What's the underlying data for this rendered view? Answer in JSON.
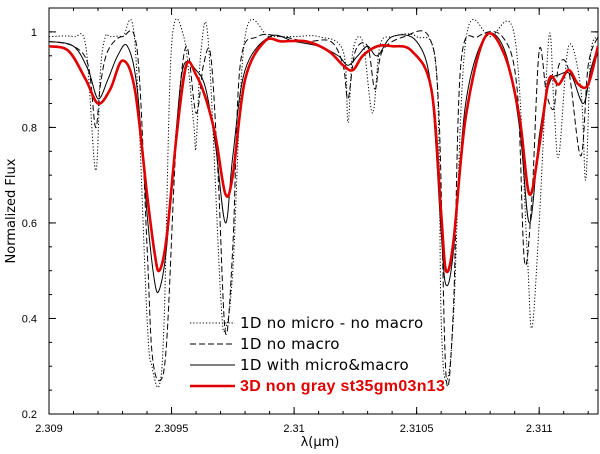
{
  "chart_data": {
    "type": "line",
    "title": "",
    "xlabel": "λ(μm)",
    "ylabel": "Normalized Flux",
    "xlim": [
      2.309,
      2.31124
    ],
    "ylim": [
      0.2,
      1.05
    ],
    "x_ticks": [
      2.309,
      2.3095,
      2.31,
      2.3105,
      2.311
    ],
    "x_tick_labels": [
      "2.309",
      "2.3095",
      "2.31",
      "2.3105",
      "2.311"
    ],
    "y_ticks": [
      0.2,
      0.4,
      0.6,
      0.8,
      1.0
    ],
    "y_tick_labels": [
      "0.2",
      "0.4",
      "0.6",
      "0.8",
      "1"
    ],
    "grid": false,
    "legend_position": "bottom-center",
    "series": [
      {
        "name": "1D no micro - no macro",
        "style": "dotted",
        "color": "#000000",
        "x": [
          2.309,
          2.3091,
          2.30915,
          2.30919,
          2.30921,
          2.30923,
          2.30925,
          2.3093,
          2.30935,
          2.3094,
          2.30942,
          2.30945,
          2.30947,
          2.3095,
          2.30955,
          2.30959,
          2.3096,
          2.30962,
          2.30965,
          2.3097,
          2.30972,
          2.30975,
          2.3098,
          2.3099,
          2.31,
          2.3101,
          2.3102,
          2.31022,
          2.31024,
          2.31028,
          2.31032,
          2.31035,
          2.3104,
          2.3105,
          2.31058,
          2.3106,
          2.31062,
          2.31065,
          2.3107,
          2.3108,
          2.3109,
          2.31095,
          2.31097,
          2.311,
          2.31104,
          2.31106,
          2.31108,
          2.31112,
          2.31117,
          2.31119,
          2.31121,
          2.31124
        ],
        "y": [
          0.99,
          0.99,
          0.97,
          0.71,
          0.92,
          0.99,
          0.99,
          0.99,
          0.98,
          0.4,
          0.3,
          0.26,
          0.4,
          0.97,
          0.99,
          0.81,
          0.76,
          0.96,
          0.98,
          0.45,
          0.38,
          0.5,
          0.99,
          0.99,
          0.99,
          0.99,
          0.96,
          0.81,
          0.96,
          0.98,
          0.83,
          0.97,
          0.99,
          0.99,
          0.92,
          0.4,
          0.27,
          0.4,
          0.98,
          0.99,
          0.99,
          0.55,
          0.38,
          0.6,
          0.99,
          0.85,
          0.74,
          0.97,
          0.88,
          0.69,
          0.95,
          0.99
        ]
      },
      {
        "name": "1D no macro",
        "style": "dashed",
        "color": "#000000",
        "x": [
          2.309,
          2.3091,
          2.30916,
          2.30919,
          2.30921,
          2.30924,
          2.3093,
          2.30936,
          2.3094,
          2.30942,
          2.30945,
          2.30948,
          2.30952,
          2.30956,
          2.3096,
          2.30963,
          2.30966,
          2.30969,
          2.30972,
          2.30975,
          2.30978,
          2.30985,
          2.30995,
          2.31005,
          2.31015,
          2.3102,
          2.31022,
          2.31025,
          2.3103,
          2.31033,
          2.31036,
          2.31045,
          2.31055,
          2.31059,
          2.31062,
          2.31065,
          2.31068,
          2.31075,
          2.31085,
          2.31091,
          2.31094,
          2.31097,
          2.311,
          2.31103,
          2.31106,
          2.31108,
          2.31112,
          2.31117,
          2.3112,
          2.31124
        ],
        "y": [
          0.98,
          0.97,
          0.93,
          0.8,
          0.89,
          0.96,
          0.99,
          0.96,
          0.55,
          0.33,
          0.27,
          0.35,
          0.78,
          0.97,
          0.83,
          0.93,
          0.95,
          0.7,
          0.37,
          0.55,
          0.93,
          0.99,
          0.99,
          0.98,
          0.98,
          0.93,
          0.86,
          0.96,
          0.97,
          0.88,
          0.96,
          0.99,
          0.99,
          0.84,
          0.28,
          0.42,
          0.93,
          0.99,
          0.99,
          0.88,
          0.52,
          0.65,
          0.96,
          0.87,
          0.84,
          0.93,
          0.92,
          0.74,
          0.93,
          0.99
        ]
      },
      {
        "name": "1D with micro&macro",
        "style": "solid",
        "color": "#000000",
        "x": [
          2.309,
          2.3091,
          2.30916,
          2.3092,
          2.30924,
          2.30928,
          2.30932,
          2.30936,
          2.3094,
          2.30943,
          2.30945,
          2.30948,
          2.30952,
          2.30955,
          2.3096,
          2.30964,
          2.30968,
          2.30972,
          2.30975,
          2.3098,
          2.3099,
          2.31,
          2.3101,
          2.31018,
          2.31022,
          2.31026,
          2.3103,
          2.31034,
          2.3104,
          2.3105,
          2.31056,
          2.3106,
          2.31062,
          2.31065,
          2.3107,
          2.31078,
          2.31086,
          2.31092,
          2.31096,
          2.311,
          2.31104,
          2.31108,
          2.31113,
          2.31118,
          2.31121,
          2.31124
        ],
        "y": [
          0.98,
          0.97,
          0.92,
          0.86,
          0.9,
          0.95,
          0.97,
          0.88,
          0.62,
          0.48,
          0.46,
          0.55,
          0.8,
          0.93,
          0.92,
          0.88,
          0.76,
          0.6,
          0.74,
          0.92,
          0.99,
          0.98,
          0.97,
          0.95,
          0.93,
          0.95,
          0.97,
          0.95,
          0.99,
          0.98,
          0.88,
          0.58,
          0.47,
          0.54,
          0.85,
          0.99,
          0.96,
          0.8,
          0.6,
          0.78,
          0.89,
          0.91,
          0.91,
          0.85,
          0.92,
          0.97
        ]
      },
      {
        "name": "3D non gray st35gm03n13",
        "style": "solid",
        "color": "#e00000",
        "x": [
          2.309,
          2.30908,
          2.30915,
          2.3092,
          2.30925,
          2.3093,
          2.30935,
          2.3094,
          2.30943,
          2.30945,
          2.30948,
          2.30952,
          2.30956,
          2.3096,
          2.30964,
          2.30968,
          2.30972,
          2.30975,
          2.3098,
          2.30988,
          2.30995,
          2.31005,
          2.31014,
          2.3102,
          2.31024,
          2.31028,
          2.31034,
          2.3104,
          2.31048,
          2.31056,
          2.3106,
          2.31062,
          2.31065,
          2.3107,
          2.31078,
          2.31086,
          2.31092,
          2.31096,
          2.311,
          2.31104,
          2.31108,
          2.31112,
          2.31116,
          2.3112,
          2.31124
        ],
        "y": [
          0.97,
          0.96,
          0.9,
          0.85,
          0.88,
          0.94,
          0.88,
          0.66,
          0.54,
          0.5,
          0.57,
          0.78,
          0.93,
          0.91,
          0.86,
          0.78,
          0.66,
          0.7,
          0.9,
          0.98,
          0.98,
          0.98,
          0.96,
          0.93,
          0.92,
          0.95,
          0.97,
          0.97,
          0.96,
          0.88,
          0.62,
          0.5,
          0.56,
          0.82,
          0.99,
          0.95,
          0.82,
          0.66,
          0.76,
          0.9,
          0.89,
          0.92,
          0.89,
          0.89,
          0.97
        ]
      }
    ]
  }
}
